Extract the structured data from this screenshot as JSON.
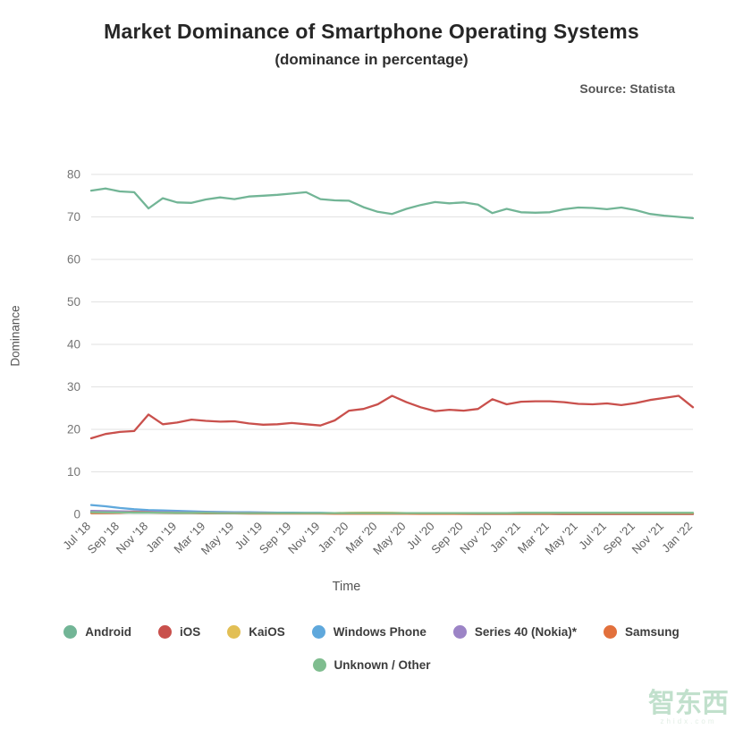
{
  "header": {
    "title": "Market Dominance of Smartphone Operating Systems",
    "subtitle": "(dominance in percentage)",
    "source": "Source: Statista"
  },
  "watermark": {
    "text": "智东西",
    "subtext": "zhidx.com"
  },
  "chart_data": {
    "type": "line",
    "title": "Market Dominance of Smartphone Operating Systems",
    "xlabel": "Time",
    "ylabel": "Dominance",
    "ylim": [
      0,
      80
    ],
    "yticks": [
      0,
      10,
      20,
      30,
      40,
      50,
      60,
      70,
      80
    ],
    "grid": true,
    "legend_position": "bottom",
    "xtick_every": 2,
    "x": [
      "Jul '18",
      "Aug '18",
      "Sep '18",
      "Oct '18",
      "Nov '18",
      "Dec '18",
      "Jan '19",
      "Feb '19",
      "Mar '19",
      "Apr '19",
      "May '19",
      "Jun '19",
      "Jul '19",
      "Aug '19",
      "Sep '19",
      "Oct '19",
      "Nov '19",
      "Dec '19",
      "Jan '20",
      "Feb '20",
      "Mar '20",
      "Apr '20",
      "May '20",
      "Jun '20",
      "Jul '20",
      "Aug '20",
      "Sep '20",
      "Oct '20",
      "Nov '20",
      "Dec '20",
      "Jan '21",
      "Feb '21",
      "Mar '21",
      "Apr '21",
      "May '21",
      "Jun '21",
      "Jul '21",
      "Aug '21",
      "Sep '21",
      "Oct '21",
      "Nov '21",
      "Dec '21",
      "Jan '22"
    ],
    "series": [
      {
        "name": "Android",
        "color": "#72b596",
        "values": [
          76.2,
          76.7,
          76.0,
          75.8,
          72.0,
          74.4,
          73.4,
          73.3,
          74.1,
          74.6,
          74.2,
          74.8,
          75.0,
          75.2,
          75.5,
          75.8,
          74.2,
          73.9,
          73.8,
          72.3,
          71.2,
          70.7,
          71.9,
          72.8,
          73.5,
          73.2,
          73.4,
          72.9,
          70.9,
          71.9,
          71.1,
          71.0,
          71.1,
          71.8,
          72.2,
          72.1,
          71.8,
          72.2,
          71.6,
          70.7,
          70.3,
          70.0,
          69.7
        ]
      },
      {
        "name": "iOS",
        "color": "#c9504c",
        "values": [
          17.9,
          18.9,
          19.4,
          19.6,
          23.5,
          21.2,
          21.6,
          22.3,
          22.0,
          21.8,
          21.9,
          21.4,
          21.1,
          21.2,
          21.5,
          21.2,
          20.9,
          22.1,
          24.4,
          24.8,
          25.9,
          27.9,
          26.4,
          25.2,
          24.3,
          24.6,
          24.4,
          24.8,
          27.1,
          25.9,
          26.5,
          26.6,
          26.6,
          26.4,
          26.0,
          25.9,
          26.1,
          25.7,
          26.2,
          26.9,
          27.4,
          27.9,
          25.2
        ]
      },
      {
        "name": "KaiOS",
        "color": "#e2bf55",
        "values": [
          0.3,
          0.35,
          0.4,
          0.6,
          0.6,
          0.5,
          0.45,
          0.4,
          0.4,
          0.35,
          0.35,
          0.3,
          0.3,
          0.3,
          0.3,
          0.3,
          0.3,
          0.3,
          0.35,
          0.4,
          0.4,
          0.35,
          0.3,
          0.3,
          0.3,
          0.3,
          0.3,
          0.25,
          0.25,
          0.25,
          0.2,
          0.2,
          0.2,
          0.2,
          0.2,
          0.15,
          0.15,
          0.15,
          0.15,
          0.15,
          0.15,
          0.1,
          0.1
        ]
      },
      {
        "name": "Windows Phone",
        "color": "#5fa8dc",
        "values": [
          2.2,
          1.9,
          1.5,
          1.2,
          1.0,
          0.9,
          0.8,
          0.7,
          0.6,
          0.55,
          0.5,
          0.5,
          0.45,
          0.4,
          0.4,
          0.35,
          0.35,
          0.3,
          0.3,
          0.25,
          0.25,
          0.2,
          0.2,
          0.2,
          0.15,
          0.15,
          0.15,
          0.1,
          0.1,
          0.1,
          0.1,
          0.1,
          0.1,
          0.05,
          0.05,
          0.05,
          0.05,
          0.05,
          0.05,
          0.05,
          0.05,
          0.05,
          0.05
        ]
      },
      {
        "name": "Series 40 (Nokia)*",
        "color": "#9c84c6",
        "values": [
          0.8,
          0.75,
          0.7,
          0.65,
          0.6,
          0.55,
          0.5,
          0.45,
          0.45,
          0.4,
          0.4,
          0.35,
          0.35,
          0.3,
          0.3,
          0.3,
          0.25,
          0.25,
          0.25,
          0.2,
          0.2,
          0.2,
          0.15,
          0.15,
          0.15,
          0.15,
          0.1,
          0.1,
          0.1,
          0.1,
          0.1,
          0.1,
          0.1,
          0.05,
          0.05,
          0.05,
          0.05,
          0.05,
          0.05,
          0.05,
          0.05,
          0.05,
          0.05
        ]
      },
      {
        "name": "Samsung",
        "color": "#e2703c",
        "values": [
          0.3,
          0.3,
          0.35,
          0.5,
          0.45,
          0.35,
          0.3,
          0.3,
          0.25,
          0.25,
          0.25,
          0.2,
          0.2,
          0.2,
          0.2,
          0.2,
          0.2,
          0.15,
          0.15,
          0.15,
          0.15,
          0.15,
          0.15,
          0.1,
          0.1,
          0.1,
          0.1,
          0.1,
          0.1,
          0.1,
          0.1,
          0.1,
          0.1,
          0.1,
          0.1,
          0.1,
          0.1,
          0.1,
          0.1,
          0.1,
          0.1,
          0.1,
          0.1
        ]
      },
      {
        "name": "Unknown / Other",
        "color": "#7fbd8f",
        "values": [
          0.5,
          0.45,
          0.45,
          0.4,
          0.4,
          0.4,
          0.35,
          0.35,
          0.35,
          0.3,
          0.3,
          0.3,
          0.3,
          0.3,
          0.3,
          0.3,
          0.3,
          0.3,
          0.3,
          0.3,
          0.3,
          0.3,
          0.3,
          0.3,
          0.3,
          0.3,
          0.3,
          0.3,
          0.3,
          0.3,
          0.35,
          0.35,
          0.35,
          0.35,
          0.35,
          0.35,
          0.35,
          0.35,
          0.35,
          0.35,
          0.35,
          0.35,
          0.35
        ]
      }
    ]
  }
}
